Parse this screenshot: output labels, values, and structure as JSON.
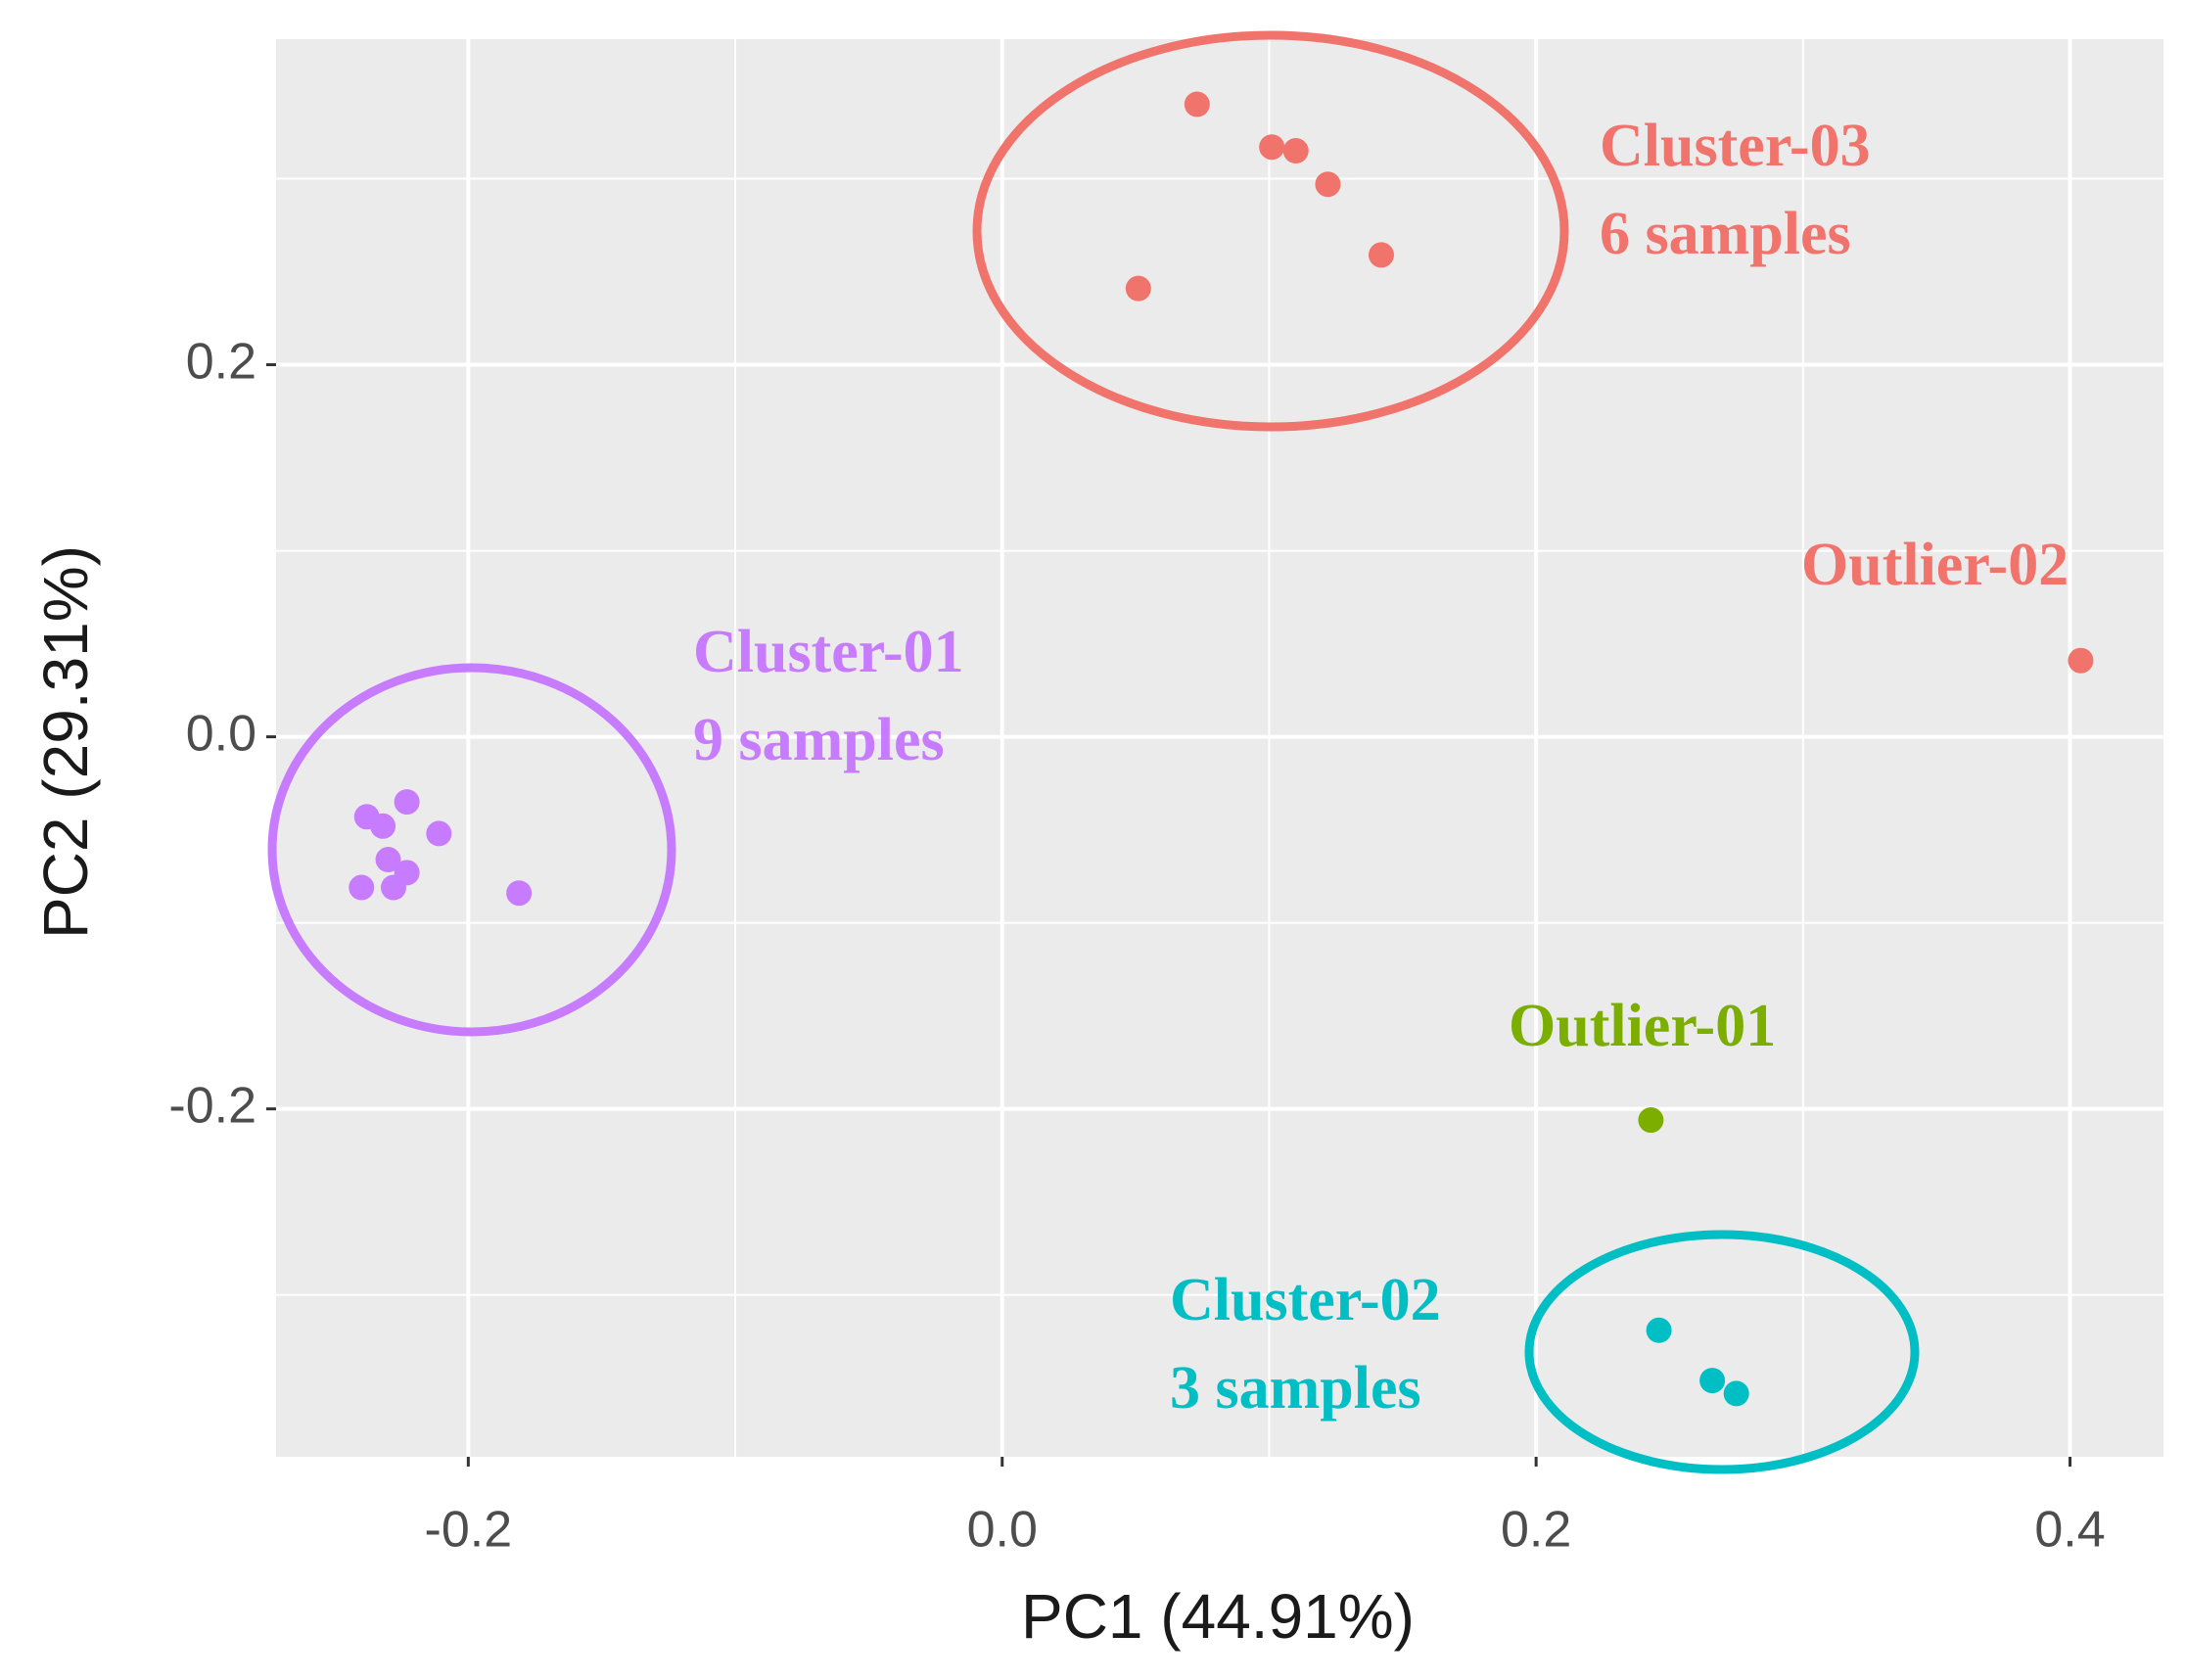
{
  "chart_data": {
    "type": "scatter",
    "x_label": "PC1 (44.91%)",
    "y_label": "PC2 (29.31%)",
    "xlim": [
      -0.272,
      0.435
    ],
    "ylim": [
      -0.387,
      0.375
    ],
    "xticks": [
      {
        "value": -0.2,
        "label": "-0.2"
      },
      {
        "value": 0,
        "label": "0.0"
      },
      {
        "value": 0.2,
        "label": "0.2"
      },
      {
        "value": 0.4,
        "label": "0.4"
      }
    ],
    "yticks": [
      {
        "value": -0.2,
        "label": "-0.2"
      },
      {
        "value": 0,
        "label": "0.0"
      },
      {
        "value": 0.2,
        "label": "0.2"
      }
    ],
    "grid": true,
    "minor_grid": true,
    "series": [
      {
        "name": "Cluster-01",
        "samples_label": "9 samples",
        "color": "#C77CFF",
        "x": [
          -0.238,
          -0.223,
          -0.232,
          -0.211,
          -0.23,
          -0.223,
          -0.24,
          -0.228,
          -0.181
        ],
        "values": [
          -0.043,
          -0.035,
          -0.048,
          -0.052,
          -0.066,
          -0.073,
          -0.081,
          -0.081,
          -0.084
        ]
      },
      {
        "name": "Cluster-02",
        "samples_label": "3 samples",
        "color": "#00BFC4",
        "x": [
          0.246,
          0.266,
          0.275
        ],
        "values": [
          -0.319,
          -0.346,
          -0.353
        ]
      },
      {
        "name": "Cluster-03",
        "samples_label": "6 samples",
        "color": "#F0736C",
        "x": [
          0.073,
          0.101,
          0.11,
          0.122,
          0.142,
          0.051
        ],
        "values": [
          0.34,
          0.317,
          0.315,
          0.297,
          0.259,
          0.241
        ]
      },
      {
        "name": "Outlier-01",
        "color": "#7CAE00",
        "x": [
          0.243
        ],
        "values": [
          -0.206
        ]
      },
      {
        "name": "Outlier-02",
        "color": "#F0736C",
        "x": [
          0.404
        ],
        "values": [
          0.041
        ]
      }
    ]
  }
}
